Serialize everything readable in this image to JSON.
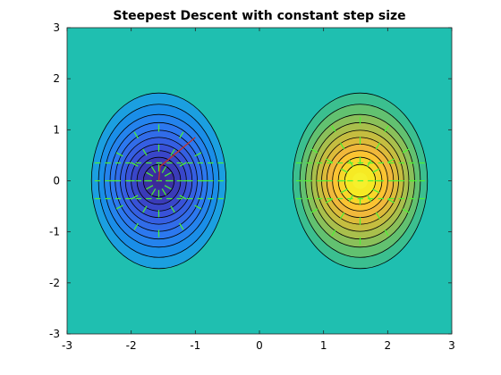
{
  "chart_data": {
    "type": "contour",
    "title": "Steepest Descent with constant step size",
    "xlabel": "",
    "ylabel": "",
    "xlim": [
      -3,
      3
    ],
    "ylim": [
      -3,
      3
    ],
    "x_ticks": [
      -3,
      -2,
      -1,
      0,
      1,
      2,
      3
    ],
    "y_ticks": [
      -3,
      -2,
      -1,
      0,
      1,
      2,
      3
    ],
    "x_tick_labels": [
      "-3",
      "-2",
      "-1",
      "0",
      "1",
      "2",
      "3"
    ],
    "y_tick_labels": [
      "-3",
      "-2",
      "-1",
      "0",
      "1",
      "2",
      "3"
    ],
    "grid": false,
    "surface": {
      "minimum": {
        "x": -1.57,
        "y": 0,
        "color": "#3b2a99"
      },
      "maximum": {
        "x": 1.57,
        "y": 0,
        "color": "#f6f02c"
      },
      "background_color": "#1fbfb0"
    },
    "contour_levels": {
      "minimum": [
        {
          "rx": 1.05,
          "ry": 1.72,
          "color": "#1b9fe0"
        },
        {
          "rx": 0.94,
          "ry": 1.5,
          "color": "#1a8ee8"
        },
        {
          "rx": 0.85,
          "ry": 1.3,
          "color": "#2483ed"
        },
        {
          "rx": 0.76,
          "ry": 1.14,
          "color": "#2c78ef"
        },
        {
          "rx": 0.68,
          "ry": 0.99,
          "color": "#316ce9"
        },
        {
          "rx": 0.6,
          "ry": 0.85,
          "color": "#355fe2"
        },
        {
          "rx": 0.52,
          "ry": 0.72,
          "color": "#3852d8"
        },
        {
          "rx": 0.43,
          "ry": 0.59,
          "color": "#3946c9"
        },
        {
          "rx": 0.34,
          "ry": 0.46,
          "color": "#3a3bb8"
        },
        {
          "rx": 0.24,
          "ry": 0.32,
          "color": "#3b30a6"
        }
      ],
      "maximum": [
        {
          "rx": 1.05,
          "ry": 1.72,
          "color": "#3bbf8f"
        },
        {
          "rx": 0.94,
          "ry": 1.5,
          "color": "#62c170"
        },
        {
          "rx": 0.85,
          "ry": 1.3,
          "color": "#8ac05a"
        },
        {
          "rx": 0.76,
          "ry": 1.14,
          "color": "#a9bf4c"
        },
        {
          "rx": 0.68,
          "ry": 0.99,
          "color": "#c5bd40"
        },
        {
          "rx": 0.6,
          "ry": 0.85,
          "color": "#dcbb3a"
        },
        {
          "rx": 0.52,
          "ry": 0.72,
          "color": "#f0b83b"
        },
        {
          "rx": 0.43,
          "ry": 0.59,
          "color": "#fbc432"
        },
        {
          "rx": 0.34,
          "ry": 0.46,
          "color": "#f8d62a"
        },
        {
          "rx": 0.24,
          "ry": 0.32,
          "color": "#f6ea24"
        }
      ]
    },
    "contour_line_color": "#000000",
    "gradient_field_color": "#4cf233",
    "descent_path": {
      "color": "#c0342c",
      "points": [
        [
          -1.0,
          0.85
        ],
        [
          -1.55,
          0.28
        ],
        [
          -1.57,
          0.0
        ]
      ]
    }
  }
}
